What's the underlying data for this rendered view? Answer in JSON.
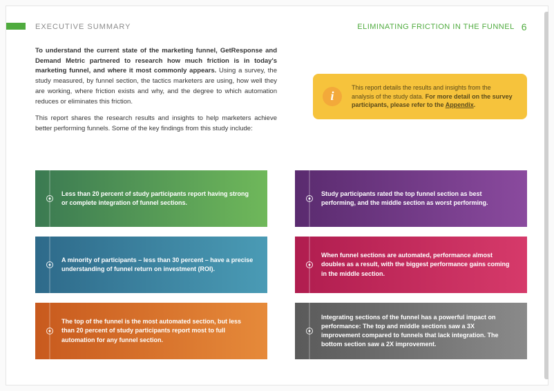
{
  "header": {
    "left": "EXECUTIVE SUMMARY",
    "left_color": "#8a8a8a",
    "right": "ELIMINATING FRICTION IN THE FUNNEL",
    "right_color": "#4fab3e",
    "page_num": "6",
    "tab_color": "#4fab3e"
  },
  "intro": {
    "p1_bold": "To understand the current state of the marketing funnel, GetResponse and Demand Metric partnered to research how much friction is in today's marketing funnel, and where it most commonly appears.",
    "p1_rest": " Using a survey, the study measured, by funnel section, the tactics marketers are using, how well they are working, where friction exists and why, and the degree to which automation reduces or eliminates this friction.",
    "p2": "This report shares the research results and insights to help marketers achieve better performing funnels. Some of the key findings from this study include:"
  },
  "callout": {
    "bg_color": "#f6c33c",
    "icon_bg": "#f3a93a",
    "icon_color": "#ffffff",
    "icon_glyph": "i",
    "text_color": "#5a4a1a",
    "t1": "This report details the results and insights from the analysis of the study data. ",
    "t2_bold": "For more detail on the survey participants, please refer to the ",
    "t3_link": "Appendix",
    "t4": "."
  },
  "cards": [
    {
      "text": "Less than 20 percent of study participants report having strong or complete integration of funnel sections.",
      "grad_from": "#3b7a52",
      "grad_to": "#6fb85a"
    },
    {
      "text": "Study participants rated the top funnel section as best performing, and the middle section as worst performing.",
      "grad_from": "#5a2b6f",
      "grad_to": "#8a4a9e"
    },
    {
      "text": "A minority of participants – less than 30 percent – have a precise understanding of funnel return on investment (ROI).",
      "grad_from": "#2e6a8a",
      "grad_to": "#4a9bb5"
    },
    {
      "text": "When funnel sections are automated, performance almost doubles as a result, with the biggest performance gains coming in the middle section.",
      "grad_from": "#b01d4f",
      "grad_to": "#d63a6a"
    },
    {
      "text": "The top of the funnel is the most automated section, but less than 20 percent of study participants report most to full automation for any funnel section.",
      "grad_from": "#c85a1e",
      "grad_to": "#e68a3a"
    },
    {
      "text": "Integrating sections of the funnel has a powerful impact on performance: The top and middle sections saw a 3X improvement compared to funnels that lack integration. The bottom section saw a 2X improvement.",
      "grad_from": "#5a5a5a",
      "grad_to": "#8a8a8a"
    }
  ],
  "right_border_color": "#cfcfcf"
}
